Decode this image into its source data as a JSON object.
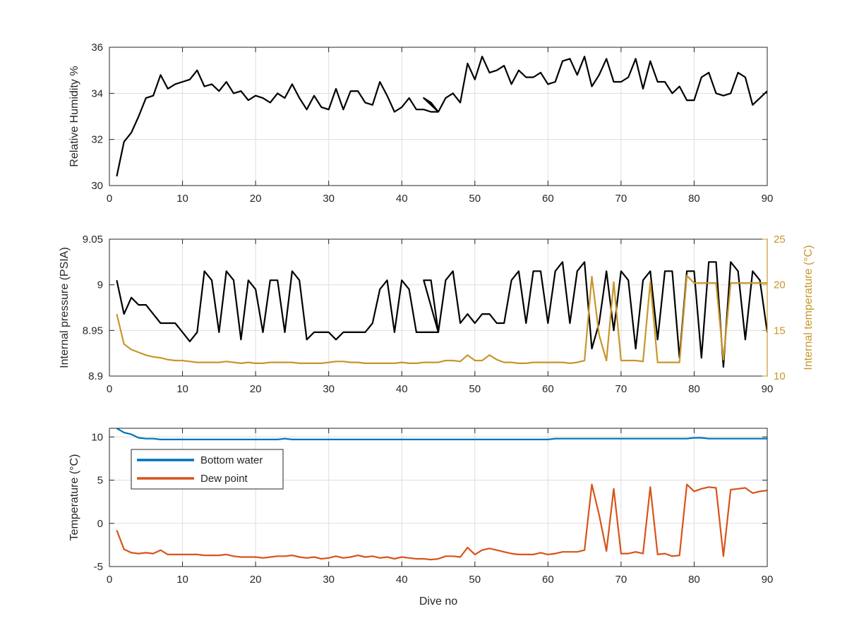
{
  "chart_data": [
    {
      "type": "line",
      "xlabel": "",
      "ylabel": "Relative Humidity %",
      "xlim": [
        0,
        90
      ],
      "ylim": [
        30,
        36
      ],
      "xticks": [
        0,
        10,
        20,
        30,
        40,
        50,
        60,
        70,
        80,
        90
      ],
      "yticks": [
        30,
        32,
        34,
        36
      ],
      "grid": true,
      "series": [
        {
          "color": "#000000",
          "x": [
            1,
            2,
            3,
            4,
            5,
            6,
            7,
            8,
            9,
            10,
            11,
            12,
            13,
            14,
            15,
            16,
            17,
            18,
            19,
            20,
            21,
            22,
            23,
            24,
            25,
            26,
            27,
            28,
            29,
            30,
            31,
            32,
            33,
            34,
            35,
            36,
            37,
            38,
            39,
            40,
            41,
            42,
            43,
            44,
            45,
            43,
            44,
            45,
            46,
            47,
            48,
            49,
            50,
            51,
            52,
            53,
            54,
            55,
            56,
            57,
            58,
            59,
            60,
            61,
            62,
            63,
            64,
            65,
            66,
            67,
            68,
            69,
            70,
            71,
            72,
            73,
            74,
            75,
            76,
            77,
            78,
            79,
            80,
            81,
            82,
            83,
            84,
            85,
            86,
            87,
            88,
            89,
            90
          ],
          "y": [
            30.4,
            31.9,
            32.3,
            33.0,
            33.8,
            33.9,
            34.8,
            34.2,
            34.4,
            34.5,
            34.6,
            35.0,
            34.3,
            34.4,
            34.1,
            34.5,
            34.0,
            34.1,
            33.7,
            33.9,
            33.8,
            33.6,
            34.0,
            33.8,
            34.4,
            33.8,
            33.3,
            33.9,
            33.4,
            33.3,
            34.2,
            33.3,
            34.1,
            34.1,
            33.6,
            33.5,
            34.5,
            33.9,
            33.2,
            33.4,
            33.8,
            33.3,
            33.3,
            33.2,
            33.2,
            33.8,
            33.6,
            33.2,
            33.8,
            34.0,
            33.6,
            35.3,
            34.6,
            35.6,
            34.9,
            35.0,
            35.2,
            34.4,
            35.0,
            34.7,
            34.7,
            34.9,
            34.4,
            34.5,
            35.4,
            35.5,
            34.8,
            35.6,
            34.3,
            34.8,
            35.5,
            34.5,
            34.5,
            34.7,
            35.5,
            34.2,
            35.4,
            34.5,
            34.5,
            34.0,
            34.3,
            33.7,
            33.7,
            34.7,
            34.9,
            34.0,
            33.9,
            34.0,
            34.9,
            34.7,
            33.5,
            33.8,
            34.1
          ]
        }
      ]
    },
    {
      "type": "line",
      "xlabel": "",
      "ylabel": "Internal pressure (PSIA)",
      "y2label": "Internal temperature (°C)",
      "xlim": [
        0,
        90
      ],
      "ylim": [
        8.9,
        9.05
      ],
      "y2lim": [
        10,
        25
      ],
      "xticks": [
        0,
        10,
        20,
        30,
        40,
        50,
        60,
        70,
        80,
        90
      ],
      "yticks": [
        8.9,
        8.95,
        9,
        9.05
      ],
      "yticklabels": [
        "8.9",
        "8.95",
        "9",
        "9.05"
      ],
      "y2ticks": [
        10,
        15,
        20,
        25
      ],
      "grid": true,
      "series": [
        {
          "axis": "left",
          "color": "#000000",
          "x": [
            1,
            2,
            3,
            4,
            5,
            6,
            7,
            8,
            9,
            10,
            11,
            12,
            13,
            14,
            15,
            16,
            17,
            18,
            19,
            20,
            21,
            22,
            23,
            24,
            25,
            26,
            27,
            28,
            29,
            30,
            31,
            32,
            33,
            34,
            35,
            36,
            37,
            38,
            39,
            40,
            41,
            42,
            43,
            44,
            45,
            43,
            44,
            45,
            46,
            47,
            48,
            49,
            50,
            51,
            52,
            53,
            54,
            55,
            56,
            57,
            58,
            59,
            60,
            61,
            62,
            63,
            64,
            65,
            66,
            67,
            68,
            69,
            70,
            71,
            72,
            73,
            74,
            75,
            76,
            77,
            78,
            79,
            80,
            81,
            82,
            83,
            84,
            85,
            86,
            87,
            88,
            89,
            90
          ],
          "y": [
            9.005,
            8.968,
            8.986,
            8.978,
            8.978,
            8.968,
            8.958,
            8.958,
            8.958,
            8.948,
            8.938,
            8.948,
            9.015,
            9.005,
            8.948,
            9.015,
            9.005,
            8.94,
            9.005,
            8.995,
            8.948,
            9.005,
            9.005,
            8.948,
            9.015,
            9.005,
            8.94,
            8.948,
            8.948,
            8.948,
            8.94,
            8.948,
            8.948,
            8.948,
            8.948,
            8.958,
            8.995,
            9.005,
            8.948,
            9.005,
            8.995,
            8.948,
            8.948,
            8.948,
            8.948,
            9.005,
            9.005,
            8.948,
            9.005,
            9.015,
            8.958,
            8.968,
            8.958,
            8.968,
            8.968,
            8.958,
            8.958,
            9.005,
            9.015,
            8.958,
            9.015,
            9.015,
            8.958,
            9.015,
            9.025,
            8.958,
            9.015,
            9.025,
            8.93,
            8.958,
            9.015,
            8.95,
            9.015,
            9.005,
            8.93,
            9.005,
            9.015,
            8.94,
            9.015,
            9.015,
            8.92,
            9.015,
            9.015,
            8.92,
            9.025,
            9.025,
            8.91,
            9.025,
            9.015,
            8.94,
            9.015,
            9.005,
            8.948
          ]
        },
        {
          "axis": "right",
          "color": "#C8962A",
          "x": [
            1,
            2,
            3,
            4,
            5,
            6,
            7,
            8,
            9,
            10,
            11,
            12,
            13,
            14,
            15,
            16,
            17,
            18,
            19,
            20,
            21,
            22,
            23,
            24,
            25,
            26,
            27,
            28,
            29,
            30,
            31,
            32,
            33,
            34,
            35,
            36,
            37,
            38,
            39,
            40,
            41,
            42,
            43,
            44,
            45,
            46,
            47,
            48,
            49,
            50,
            51,
            52,
            53,
            54,
            55,
            56,
            57,
            58,
            59,
            60,
            61,
            62,
            63,
            64,
            65,
            66,
            67,
            68,
            69,
            70,
            71,
            72,
            73,
            74,
            75,
            76,
            77,
            78,
            79,
            80,
            81,
            82,
            83,
            84,
            85,
            86,
            87,
            88,
            89,
            90
          ],
          "y": [
            16.8,
            13.5,
            12.9,
            12.6,
            12.3,
            12.1,
            12.0,
            11.8,
            11.7,
            11.7,
            11.6,
            11.5,
            11.5,
            11.5,
            11.5,
            11.6,
            11.5,
            11.4,
            11.5,
            11.4,
            11.4,
            11.5,
            11.5,
            11.5,
            11.5,
            11.4,
            11.4,
            11.4,
            11.4,
            11.5,
            11.6,
            11.6,
            11.5,
            11.5,
            11.4,
            11.4,
            11.4,
            11.4,
            11.4,
            11.5,
            11.4,
            11.4,
            11.5,
            11.5,
            11.5,
            11.7,
            11.7,
            11.6,
            12.3,
            11.7,
            11.7,
            12.3,
            11.8,
            11.5,
            11.5,
            11.4,
            11.4,
            11.5,
            11.5,
            11.5,
            11.5,
            11.5,
            11.4,
            11.5,
            11.7,
            20.9,
            14.5,
            11.7,
            20.3,
            11.7,
            11.7,
            11.7,
            11.6,
            20.3,
            11.5,
            11.5,
            11.5,
            11.5,
            21.0,
            20.2,
            20.2,
            20.2,
            20.2,
            11.8,
            20.2,
            20.2,
            20.2,
            20.2,
            20.2,
            20.2
          ]
        }
      ]
    },
    {
      "type": "line",
      "xlabel": "Dive no",
      "ylabel": "Temperature (°C)",
      "xlim": [
        0,
        90
      ],
      "ylim": [
        -5,
        11
      ],
      "xticks": [
        0,
        10,
        20,
        30,
        40,
        50,
        60,
        70,
        80,
        90
      ],
      "yticks": [
        -5,
        0,
        5,
        10
      ],
      "grid": true,
      "legend": "top-left",
      "series": [
        {
          "name": "Bottom water",
          "color": "#0072BD",
          "x": [
            1,
            2,
            3,
            4,
            5,
            6,
            7,
            8,
            9,
            10,
            11,
            12,
            13,
            14,
            15,
            16,
            17,
            18,
            19,
            20,
            21,
            22,
            23,
            24,
            25,
            26,
            27,
            28,
            29,
            30,
            31,
            32,
            33,
            34,
            35,
            36,
            37,
            38,
            39,
            40,
            41,
            42,
            43,
            44,
            45,
            46,
            47,
            48,
            49,
            50,
            51,
            52,
            53,
            54,
            55,
            56,
            57,
            58,
            59,
            60,
            61,
            62,
            63,
            64,
            65,
            66,
            67,
            68,
            69,
            70,
            71,
            72,
            73,
            74,
            75,
            76,
            77,
            78,
            79,
            80,
            81,
            82,
            83,
            84,
            85,
            86,
            87,
            88,
            89,
            90
          ],
          "y": [
            11.0,
            10.5,
            10.3,
            9.9,
            9.8,
            9.8,
            9.7,
            9.7,
            9.7,
            9.7,
            9.7,
            9.7,
            9.7,
            9.7,
            9.7,
            9.7,
            9.7,
            9.7,
            9.7,
            9.7,
            9.7,
            9.7,
            9.7,
            9.8,
            9.7,
            9.7,
            9.7,
            9.7,
            9.7,
            9.7,
            9.7,
            9.7,
            9.7,
            9.7,
            9.7,
            9.7,
            9.7,
            9.7,
            9.7,
            9.7,
            9.7,
            9.7,
            9.7,
            9.7,
            9.7,
            9.7,
            9.7,
            9.7,
            9.7,
            9.7,
            9.7,
            9.7,
            9.7,
            9.7,
            9.7,
            9.7,
            9.7,
            9.7,
            9.7,
            9.7,
            9.8,
            9.8,
            9.8,
            9.8,
            9.8,
            9.8,
            9.8,
            9.8,
            9.8,
            9.8,
            9.8,
            9.8,
            9.8,
            9.8,
            9.8,
            9.8,
            9.8,
            9.8,
            9.8,
            9.9,
            9.9,
            9.8,
            9.8,
            9.8,
            9.8,
            9.8,
            9.8,
            9.8,
            9.8,
            9.8
          ]
        },
        {
          "name": "Dew point",
          "color": "#D95319",
          "x": [
            1,
            2,
            3,
            4,
            5,
            6,
            7,
            8,
            9,
            10,
            11,
            12,
            13,
            14,
            15,
            16,
            17,
            18,
            19,
            20,
            21,
            22,
            23,
            24,
            25,
            26,
            27,
            28,
            29,
            30,
            31,
            32,
            33,
            34,
            35,
            36,
            37,
            38,
            39,
            40,
            41,
            42,
            43,
            44,
            45,
            46,
            47,
            48,
            49,
            50,
            51,
            52,
            53,
            54,
            55,
            56,
            57,
            58,
            59,
            60,
            61,
            62,
            63,
            64,
            65,
            66,
            67,
            68,
            69,
            70,
            71,
            72,
            73,
            74,
            75,
            76,
            77,
            78,
            79,
            80,
            81,
            82,
            83,
            84,
            85,
            86,
            87,
            88,
            89,
            90
          ],
          "y": [
            -0.8,
            -3.0,
            -3.4,
            -3.5,
            -3.4,
            -3.5,
            -3.1,
            -3.6,
            -3.6,
            -3.6,
            -3.6,
            -3.6,
            -3.7,
            -3.7,
            -3.7,
            -3.6,
            -3.8,
            -3.9,
            -3.9,
            -3.9,
            -4.0,
            -3.9,
            -3.8,
            -3.8,
            -3.7,
            -3.9,
            -4.0,
            -3.9,
            -4.1,
            -4.0,
            -3.8,
            -4.0,
            -3.9,
            -3.7,
            -3.9,
            -3.8,
            -4.0,
            -3.9,
            -4.1,
            -3.9,
            -4.0,
            -4.1,
            -4.1,
            -4.2,
            -4.1,
            -3.8,
            -3.8,
            -3.9,
            -2.8,
            -3.6,
            -3.1,
            -2.9,
            -3.1,
            -3.3,
            -3.5,
            -3.6,
            -3.6,
            -3.6,
            -3.4,
            -3.6,
            -3.5,
            -3.3,
            -3.3,
            -3.3,
            -3.1,
            4.5,
            1.0,
            -3.2,
            4.0,
            -3.5,
            -3.5,
            -3.3,
            -3.5,
            4.2,
            -3.6,
            -3.5,
            -3.8,
            -3.7,
            4.5,
            3.7,
            4.0,
            4.2,
            4.1,
            -3.8,
            3.9,
            4.0,
            4.1,
            3.5,
            3.7,
            3.8
          ]
        }
      ]
    }
  ]
}
